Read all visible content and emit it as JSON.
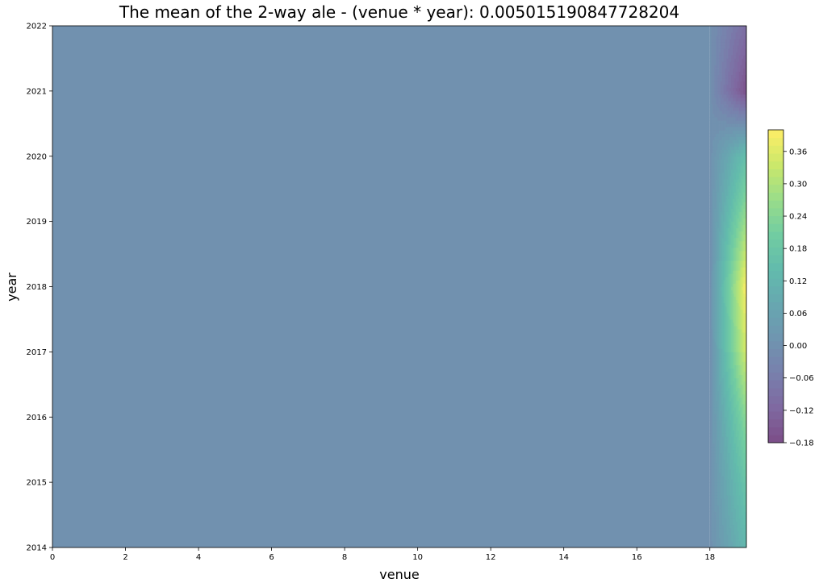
{
  "chart_data": {
    "type": "heatmap",
    "subtype": "filled-contour",
    "title": "The mean of the 2-way ale - (venue * year): 0.005015190847728204",
    "xlabel": "venue",
    "ylabel": "year",
    "xlim": [
      0,
      19
    ],
    "ylim": [
      2014,
      2022
    ],
    "x_ticks": [
      0,
      2,
      4,
      6,
      8,
      10,
      12,
      14,
      16,
      18
    ],
    "y_ticks": [
      2014,
      2015,
      2016,
      2017,
      2018,
      2019,
      2020,
      2021,
      2022
    ],
    "colorbar": {
      "ticks": [
        "−0.18",
        "−0.12",
        "−0.06",
        "0.00",
        "0.06",
        "0.12",
        "0.18",
        "0.24",
        "0.30",
        "0.36"
      ],
      "tick_values": [
        -0.18,
        -0.12,
        -0.06,
        0.0,
        0.06,
        0.12,
        0.18,
        0.24,
        0.3,
        0.36
      ],
      "range": [
        -0.18,
        0.4
      ],
      "colormap": "viridis",
      "alpha": 0.7
    },
    "grid": false,
    "x": [
      0,
      18,
      19
    ],
    "y": [
      2014,
      2015,
      2016,
      2017,
      2018,
      2019,
      2020,
      2021,
      2022
    ],
    "z": [
      [
        0.0,
        0.0,
        0.13
      ],
      [
        0.0,
        0.0,
        0.18
      ],
      [
        0.0,
        0.0,
        0.25
      ],
      [
        0.0,
        0.0,
        0.35
      ],
      [
        0.0,
        0.0,
        0.4
      ],
      [
        0.0,
        0.0,
        0.28
      ],
      [
        0.0,
        0.0,
        0.16
      ],
      [
        0.0,
        0.0,
        -0.17
      ],
      [
        0.0,
        0.0,
        -0.1
      ]
    ]
  }
}
